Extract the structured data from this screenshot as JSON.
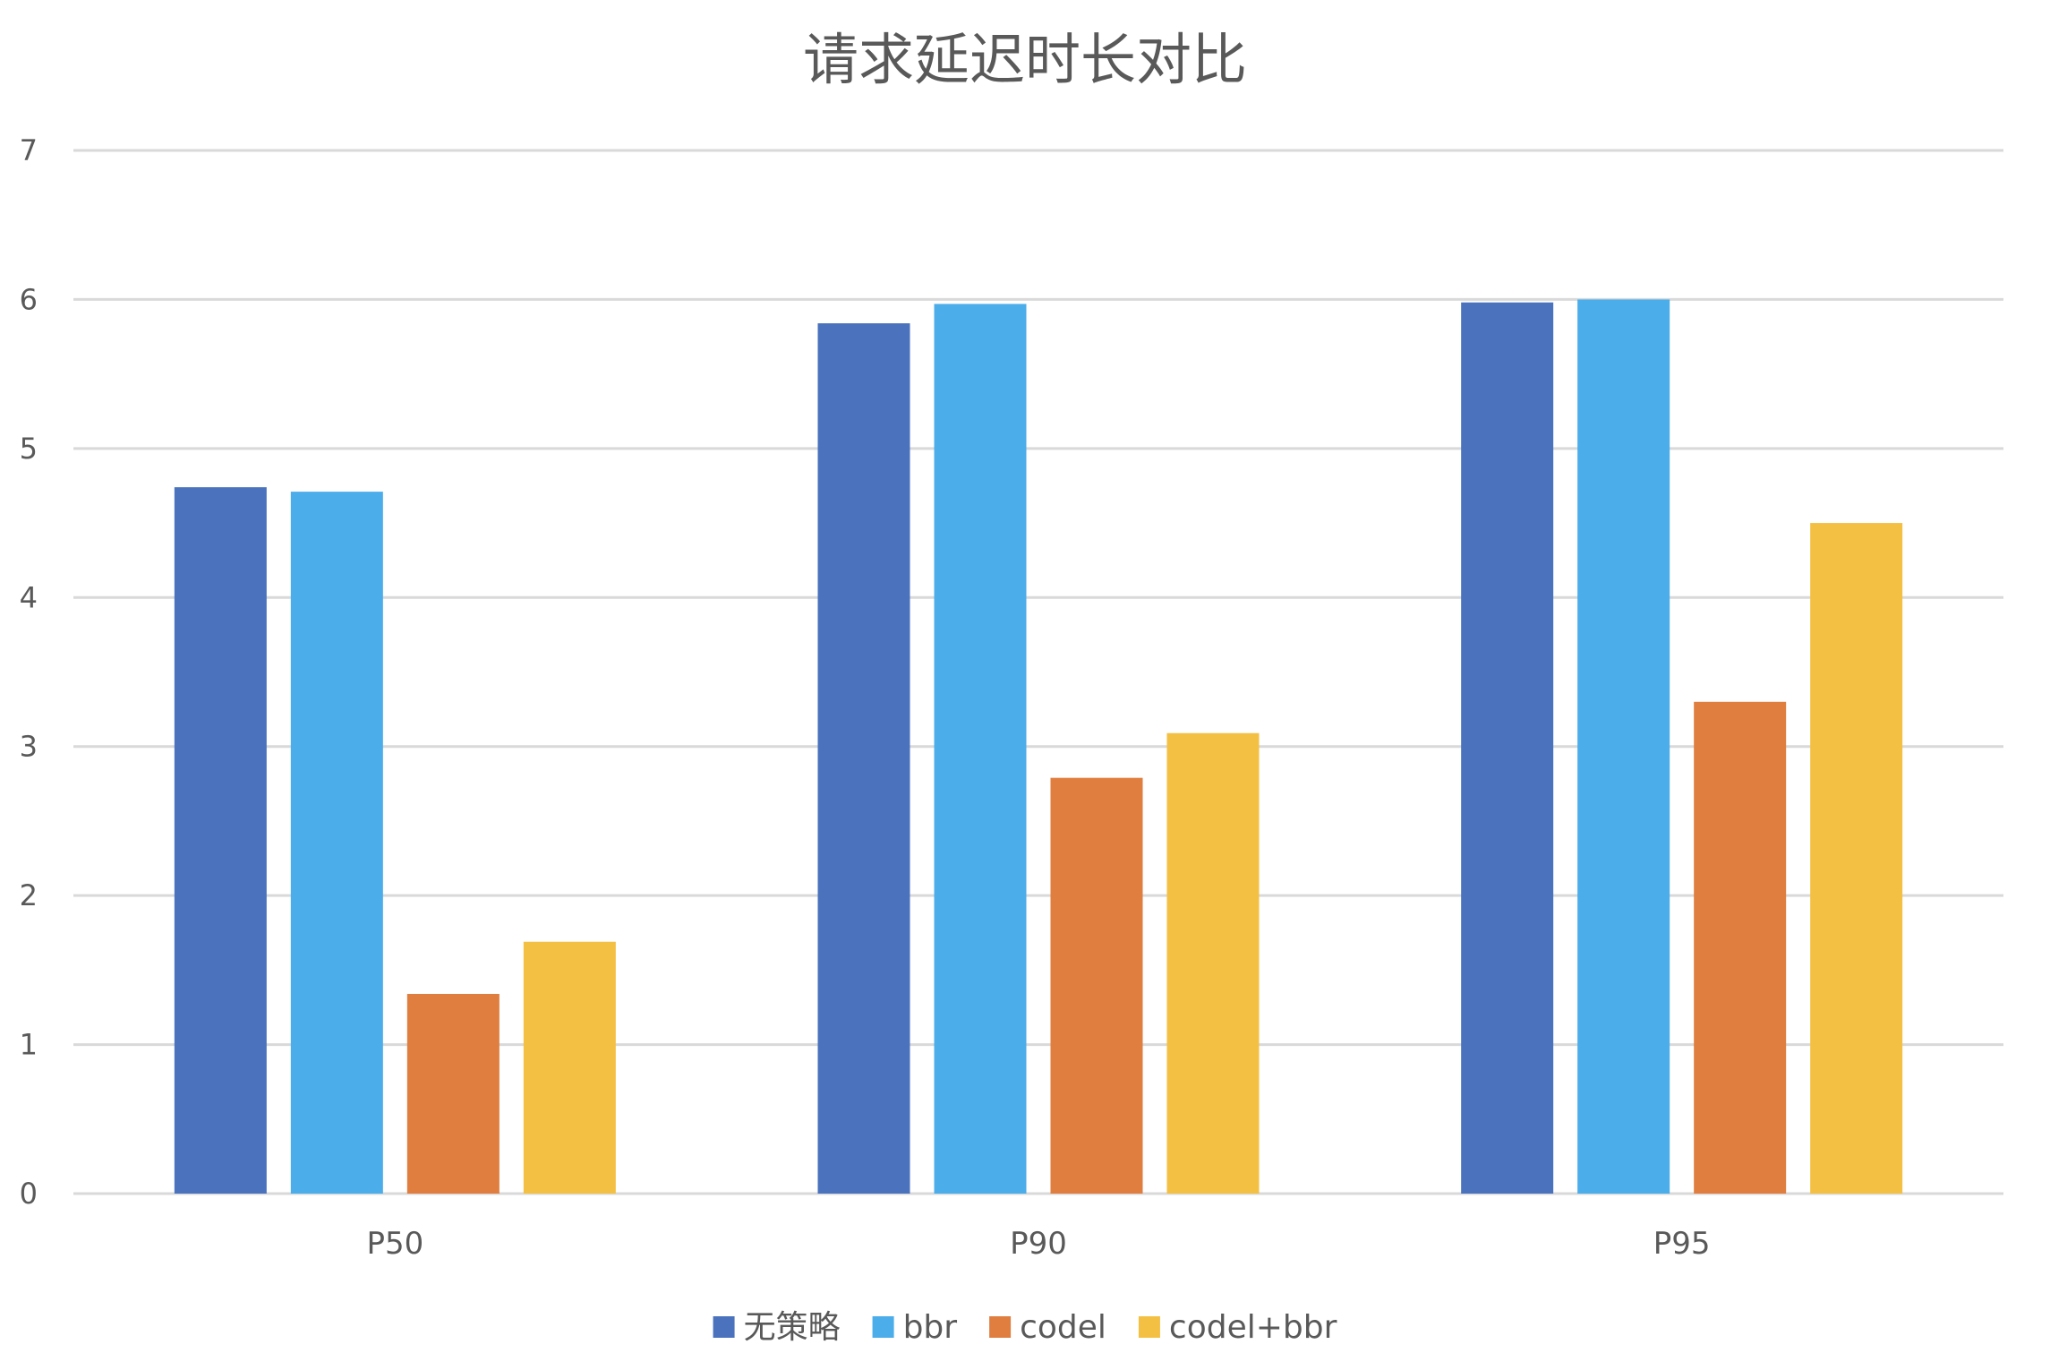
{
  "chart_data": {
    "type": "bar",
    "title": "请求延迟时长对比",
    "xlabel": "",
    "ylabel": "",
    "categories": [
      "P50",
      "P90",
      "P95"
    ],
    "ylim": [
      0,
      7
    ],
    "yticks": [
      0,
      1,
      2,
      3,
      4,
      5,
      6,
      7
    ],
    "grid": true,
    "legend_position": "bottom",
    "series": [
      {
        "name": "无策略",
        "color": "#4a72bd",
        "values": [
          4.74,
          5.84,
          5.98
        ]
      },
      {
        "name": "bbr",
        "color": "#4badea",
        "values": [
          4.71,
          5.97,
          6.0
        ]
      },
      {
        "name": "codel",
        "color": "#df7e3f",
        "values": [
          1.34,
          2.79,
          3.3
        ]
      },
      {
        "name": "codel+bbr",
        "color": "#f4c043",
        "values": [
          1.69,
          3.09,
          4.5
        ]
      }
    ]
  }
}
